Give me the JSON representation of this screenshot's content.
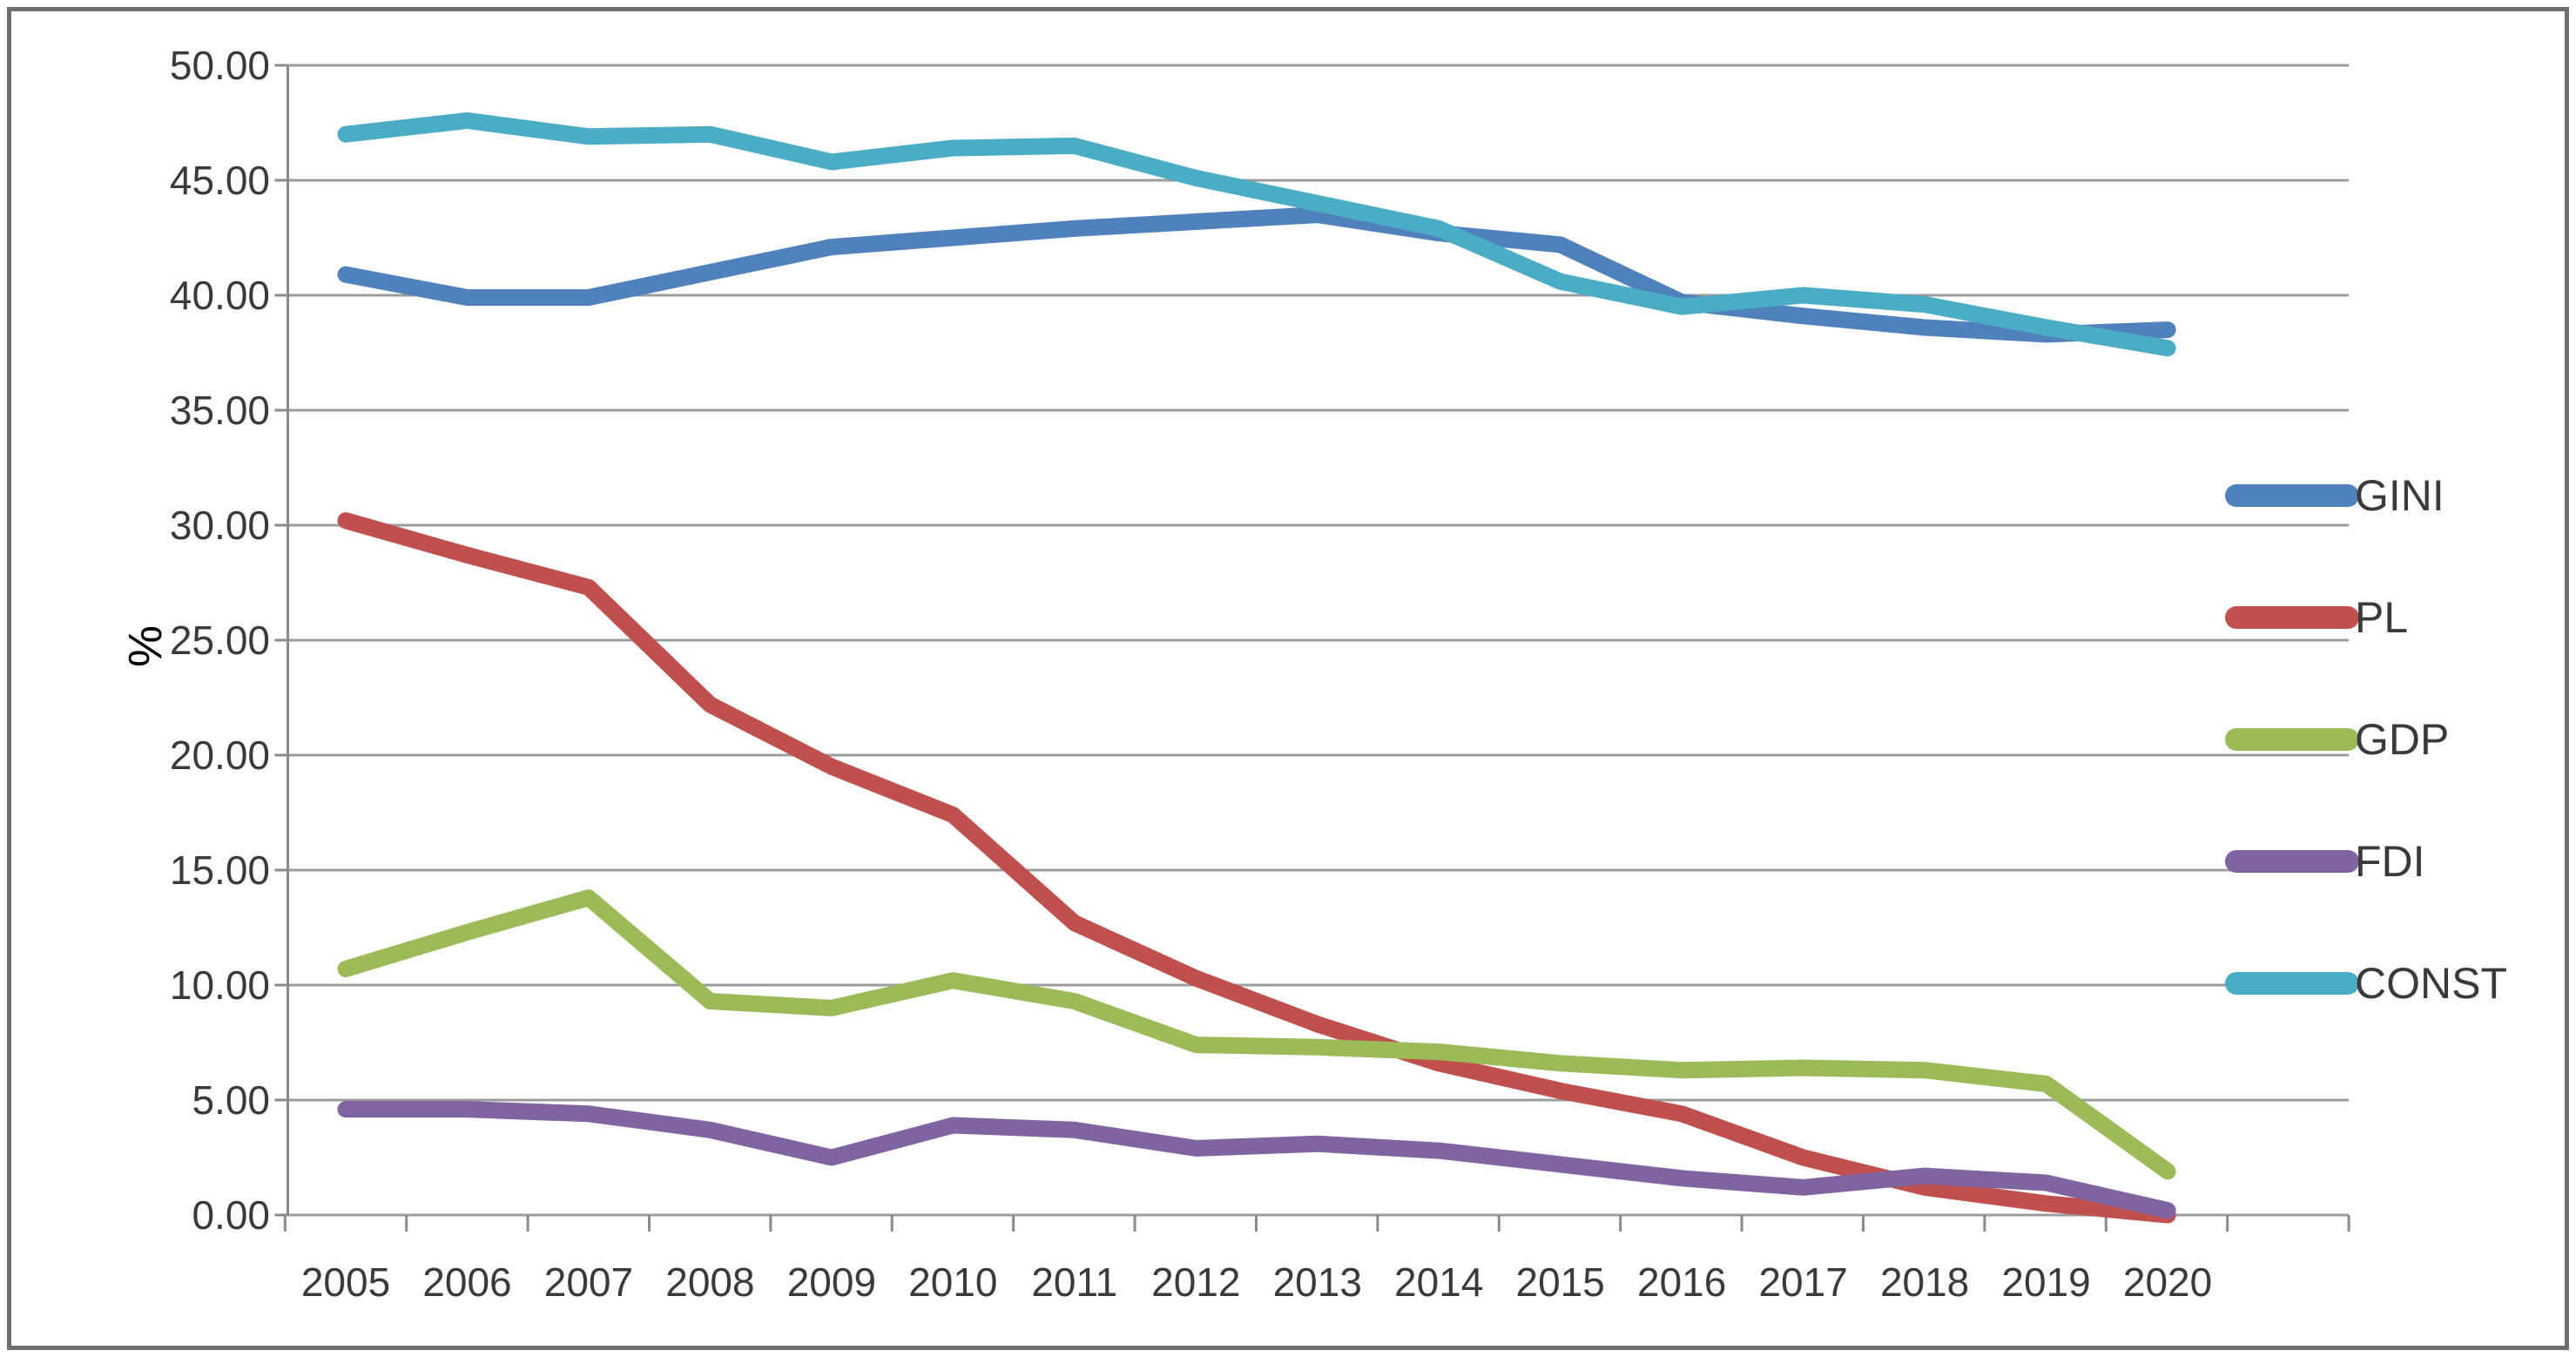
{
  "chart_data": {
    "type": "line",
    "title": "",
    "xlabel": "",
    "ylabel": "%",
    "x_categories": [
      "2005",
      "2006",
      "2007",
      "2008",
      "2009",
      "2010",
      "2011",
      "2012",
      "2013",
      "2014",
      "2015",
      "2016",
      "2017",
      "2018",
      "2019",
      "2020"
    ],
    "ylim": [
      0,
      50
    ],
    "ytick_step": 5,
    "ytick_decimals": 2,
    "ytick_labels": [
      "0.00",
      "5.00",
      "10.00",
      "15.00",
      "20.00",
      "25.00",
      "30.00",
      "35.00",
      "40.00",
      "45.00",
      "50.00"
    ],
    "grid": "horizontal",
    "legend_position": "right",
    "series": [
      {
        "name": "GINI",
        "color": "#4F81BD",
        "values": [
          40.9,
          39.9,
          39.9,
          41.0,
          42.1,
          42.5,
          42.9,
          43.2,
          43.5,
          42.7,
          42.2,
          39.7,
          39.1,
          38.6,
          38.3,
          38.5
        ]
      },
      {
        "name": "PL",
        "color": "#C0504D",
        "values": [
          30.2,
          28.7,
          27.3,
          22.2,
          19.5,
          17.4,
          12.7,
          10.3,
          8.3,
          6.6,
          5.4,
          4.4,
          2.5,
          1.2,
          0.5,
          0.0
        ]
      },
      {
        "name": "GDP",
        "color": "#9BBB59",
        "values": [
          10.7,
          12.3,
          13.8,
          9.3,
          9.0,
          10.2,
          9.3,
          7.4,
          7.3,
          7.1,
          6.6,
          6.3,
          6.4,
          6.3,
          5.7,
          1.9
        ]
      },
      {
        "name": "FDI",
        "color": "#8064A2",
        "values": [
          4.6,
          4.6,
          4.4,
          3.7,
          2.5,
          3.9,
          3.7,
          2.9,
          3.1,
          2.8,
          2.2,
          1.6,
          1.2,
          1.7,
          1.4,
          0.2
        ]
      },
      {
        "name": "CONST",
        "color": "#4BACC6",
        "values": [
          47.0,
          47.6,
          46.9,
          47.0,
          45.8,
          46.4,
          46.5,
          45.1,
          44.0,
          42.9,
          40.6,
          39.5,
          40.0,
          39.6,
          38.6,
          37.7
        ]
      }
    ]
  },
  "styles": {
    "background": "#FFFFFF",
    "frame_color": "#6F6F6F",
    "grid_color": "#9C9C9C",
    "axis_color": "#8A8A8A",
    "text_color": "#3A3A3A"
  }
}
